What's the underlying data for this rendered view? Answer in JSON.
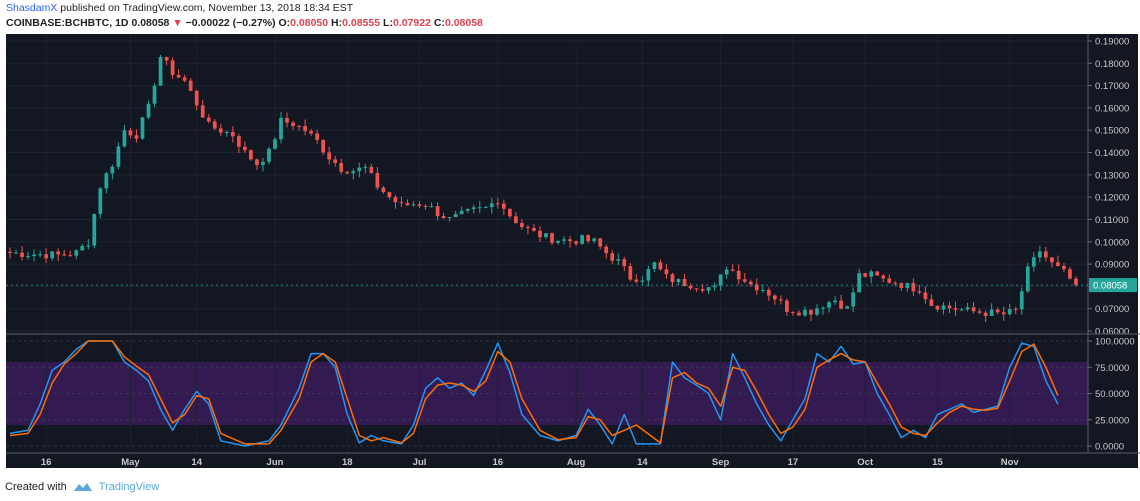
{
  "header": {
    "author": "ShasdamX",
    "published": "published on TradingView.com, November 13, 2018 18:34 EST",
    "symbol": "COINBASE:BCHBTC, 1D",
    "last": "0.08058",
    "change_arrow": "▼",
    "change": "−0.00022 (−0.27%)",
    "o_label": "O:",
    "o_value": "0.08050",
    "h_label": "H:",
    "h_value": "0.08555",
    "l_label": "L:",
    "l_value": "0.07922",
    "c_label": "C:",
    "c_value": "0.08058"
  },
  "footer": {
    "created_with": "Created with",
    "brand": "TradingView"
  },
  "colors": {
    "background": "#131722",
    "up": "#26a69a",
    "down": "#ef5350",
    "stoch_k": "#2196f3",
    "stoch_d": "#ff6d00",
    "band_fill": "#3f1d63",
    "price_tag": "#26a69a"
  },
  "chart_data": [
    {
      "type": "candlestick",
      "symbol": "COINBASE:BCHBTC",
      "interval": "1D",
      "ylim": [
        0.06,
        0.19
      ],
      "yticks": [
        "0.06000",
        "0.07000",
        "0.08000",
        "0.09000",
        "0.10000",
        "0.11000",
        "0.12000",
        "0.13000",
        "0.14000",
        "0.15000",
        "0.16000",
        "0.17000",
        "0.18000",
        "0.19000"
      ],
      "last_price_label": "0.08058",
      "last_price": 0.08058,
      "x_ticks": [
        "16",
        "May",
        "14",
        "Jun",
        "18",
        "Jul",
        "16",
        "Aug",
        "14",
        "Sep",
        "17",
        "Oct",
        "15",
        "Nov"
      ],
      "x_tick_index": [
        6,
        20,
        31,
        44,
        56,
        68,
        81,
        94,
        105,
        118,
        130,
        142,
        154,
        166
      ],
      "close_path": [
        [
          0,
          0.095
        ],
        [
          4,
          0.0945
        ],
        [
          8,
          0.094
        ],
        [
          11,
          0.095
        ],
        [
          13,
          0.1
        ],
        [
          15,
          0.125
        ],
        [
          17,
          0.135
        ],
        [
          19,
          0.15
        ],
        [
          21,
          0.148
        ],
        [
          23,
          0.16
        ],
        [
          25,
          0.183
        ],
        [
          27,
          0.176
        ],
        [
          29,
          0.172
        ],
        [
          31,
          0.162
        ],
        [
          33,
          0.152
        ],
        [
          35,
          0.15
        ],
        [
          37,
          0.148
        ],
        [
          39,
          0.14
        ],
        [
          41,
          0.135
        ],
        [
          43,
          0.14
        ],
        [
          45,
          0.154
        ],
        [
          47,
          0.153
        ],
        [
          49,
          0.15
        ],
        [
          51,
          0.145
        ],
        [
          53,
          0.138
        ],
        [
          55,
          0.133
        ],
        [
          57,
          0.132
        ],
        [
          59,
          0.133
        ],
        [
          61,
          0.125
        ],
        [
          63,
          0.12
        ],
        [
          65,
          0.116
        ],
        [
          67,
          0.117
        ],
        [
          69,
          0.117
        ],
        [
          71,
          0.113
        ],
        [
          73,
          0.11
        ],
        [
          75,
          0.112
        ],
        [
          77,
          0.114
        ],
        [
          79,
          0.115
        ],
        [
          81,
          0.119
        ],
        [
          83,
          0.112
        ],
        [
          85,
          0.107
        ],
        [
          87,
          0.104
        ],
        [
          89,
          0.102
        ],
        [
          91,
          0.101
        ],
        [
          93,
          0.1005
        ],
        [
          95,
          0.101
        ],
        [
          97,
          0.1
        ],
        [
          99,
          0.095
        ],
        [
          101,
          0.091
        ],
        [
          103,
          0.084
        ],
        [
          105,
          0.084
        ],
        [
          107,
          0.09
        ],
        [
          109,
          0.084
        ],
        [
          111,
          0.082
        ],
        [
          113,
          0.081
        ],
        [
          115,
          0.08
        ],
        [
          117,
          0.079
        ],
        [
          119,
          0.089
        ],
        [
          121,
          0.085
        ],
        [
          123,
          0.081
        ],
        [
          125,
          0.079
        ],
        [
          127,
          0.075
        ],
        [
          129,
          0.07
        ],
        [
          131,
          0.069
        ],
        [
          133,
          0.069
        ],
        [
          135,
          0.072
        ],
        [
          137,
          0.074
        ],
        [
          139,
          0.07
        ],
        [
          141,
          0.085
        ],
        [
          143,
          0.085
        ],
        [
          145,
          0.083
        ],
        [
          147,
          0.082
        ],
        [
          149,
          0.08
        ],
        [
          151,
          0.079
        ],
        [
          153,
          0.072
        ],
        [
          155,
          0.071
        ],
        [
          157,
          0.07
        ],
        [
          159,
          0.069
        ],
        [
          161,
          0.0685
        ],
        [
          163,
          0.068
        ],
        [
          165,
          0.0675
        ],
        [
          167,
          0.069
        ],
        [
          169,
          0.087
        ],
        [
          171,
          0.096
        ],
        [
          173,
          0.09
        ],
        [
          175,
          0.086
        ],
        [
          177,
          0.0806
        ]
      ]
    },
    {
      "type": "line",
      "indicator": "Stochastic RSI",
      "ylim": [
        0,
        100
      ],
      "yticks": [
        "0.0000",
        "25.0000",
        "50.0000",
        "75.0000",
        "100.0000"
      ],
      "band": [
        20,
        80
      ],
      "series": [
        {
          "key": "k",
          "points": [
            [
              0,
              12
            ],
            [
              3,
              15
            ],
            [
              5,
              40
            ],
            [
              7,
              72
            ],
            [
              9,
              80
            ],
            [
              11,
              92
            ],
            [
              13,
              100
            ],
            [
              17,
              100
            ],
            [
              19,
              80
            ],
            [
              21,
              72
            ],
            [
              23,
              62
            ],
            [
              25,
              35
            ],
            [
              27,
              15
            ],
            [
              29,
              35
            ],
            [
              31,
              52
            ],
            [
              33,
              40
            ],
            [
              35,
              5
            ],
            [
              39,
              0
            ],
            [
              43,
              5
            ],
            [
              45,
              20
            ],
            [
              48,
              55
            ],
            [
              50,
              88
            ],
            [
              52,
              88
            ],
            [
              54,
              75
            ],
            [
              56,
              30
            ],
            [
              58,
              3
            ],
            [
              60,
              10
            ],
            [
              62,
              5
            ],
            [
              65,
              2
            ],
            [
              67,
              20
            ],
            [
              69,
              55
            ],
            [
              71,
              65
            ],
            [
              73,
              55
            ],
            [
              75,
              60
            ],
            [
              77,
              48
            ],
            [
              79,
              72
            ],
            [
              81,
              98
            ],
            [
              83,
              70
            ],
            [
              85,
              30
            ],
            [
              88,
              10
            ],
            [
              91,
              5
            ],
            [
              94,
              10
            ],
            [
              96,
              35
            ],
            [
              98,
              20
            ],
            [
              100,
              2
            ],
            [
              102,
              30
            ],
            [
              104,
              2
            ],
            [
              108,
              2
            ],
            [
              110,
              80
            ],
            [
              112,
              65
            ],
            [
              114,
              58
            ],
            [
              116,
              50
            ],
            [
              118,
              25
            ],
            [
              120,
              88
            ],
            [
              122,
              65
            ],
            [
              124,
              40
            ],
            [
              126,
              20
            ],
            [
              128,
              5
            ],
            [
              130,
              25
            ],
            [
              132,
              45
            ],
            [
              134,
              88
            ],
            [
              136,
              80
            ],
            [
              138,
              95
            ],
            [
              140,
              78
            ],
            [
              142,
              80
            ],
            [
              144,
              50
            ],
            [
              146,
              30
            ],
            [
              148,
              8
            ],
            [
              150,
              15
            ],
            [
              152,
              8
            ],
            [
              154,
              30
            ],
            [
              156,
              35
            ],
            [
              158,
              40
            ],
            [
              160,
              32
            ],
            [
              162,
              35
            ],
            [
              164,
              38
            ],
            [
              166,
              75
            ],
            [
              168,
              98
            ],
            [
              170,
              95
            ],
            [
              172,
              62
            ],
            [
              174,
              40
            ]
          ]
        },
        {
          "key": "d",
          "points": [
            [
              0,
              10
            ],
            [
              3,
              12
            ],
            [
              5,
              30
            ],
            [
              7,
              60
            ],
            [
              9,
              78
            ],
            [
              11,
              88
            ],
            [
              13,
              100
            ],
            [
              17,
              100
            ],
            [
              19,
              85
            ],
            [
              21,
              76
            ],
            [
              23,
              68
            ],
            [
              25,
              45
            ],
            [
              27,
              22
            ],
            [
              29,
              30
            ],
            [
              31,
              48
            ],
            [
              33,
              45
            ],
            [
              35,
              12
            ],
            [
              39,
              2
            ],
            [
              43,
              2
            ],
            [
              45,
              15
            ],
            [
              48,
              45
            ],
            [
              50,
              80
            ],
            [
              52,
              88
            ],
            [
              54,
              80
            ],
            [
              56,
              45
            ],
            [
              58,
              10
            ],
            [
              60,
              5
            ],
            [
              62,
              8
            ],
            [
              65,
              3
            ],
            [
              67,
              12
            ],
            [
              69,
              45
            ],
            [
              71,
              58
            ],
            [
              73,
              60
            ],
            [
              75,
              58
            ],
            [
              77,
              52
            ],
            [
              79,
              62
            ],
            [
              81,
              90
            ],
            [
              83,
              80
            ],
            [
              85,
              45
            ],
            [
              88,
              15
            ],
            [
              91,
              6
            ],
            [
              94,
              8
            ],
            [
              96,
              28
            ],
            [
              98,
              25
            ],
            [
              100,
              10
            ],
            [
              102,
              15
            ],
            [
              104,
              20
            ],
            [
              108,
              3
            ],
            [
              110,
              65
            ],
            [
              112,
              70
            ],
            [
              114,
              60
            ],
            [
              116,
              55
            ],
            [
              118,
              38
            ],
            [
              120,
              75
            ],
            [
              122,
              72
            ],
            [
              124,
              52
            ],
            [
              126,
              30
            ],
            [
              128,
              12
            ],
            [
              130,
              18
            ],
            [
              132,
              35
            ],
            [
              134,
              75
            ],
            [
              136,
              82
            ],
            [
              138,
              88
            ],
            [
              140,
              82
            ],
            [
              142,
              80
            ],
            [
              144,
              60
            ],
            [
              146,
              40
            ],
            [
              148,
              18
            ],
            [
              150,
              12
            ],
            [
              152,
              10
            ],
            [
              154,
              22
            ],
            [
              156,
              32
            ],
            [
              158,
              38
            ],
            [
              160,
              35
            ],
            [
              162,
              34
            ],
            [
              164,
              36
            ],
            [
              166,
              62
            ],
            [
              168,
              90
            ],
            [
              170,
              97
            ],
            [
              172,
              75
            ],
            [
              174,
              48
            ]
          ]
        }
      ]
    }
  ]
}
